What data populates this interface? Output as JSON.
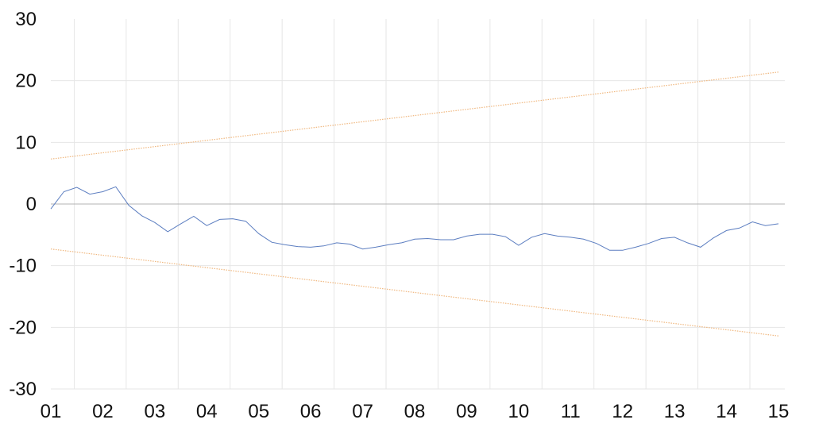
{
  "chart_data": {
    "type": "line",
    "title": "",
    "xlabel": "",
    "ylabel": "",
    "ylim": [
      -30,
      30
    ],
    "yticks": [
      30,
      20,
      10,
      0,
      -10,
      -20,
      -30
    ],
    "x_categories": [
      "01",
      "02",
      "03",
      "04",
      "05",
      "06",
      "07",
      "08",
      "09",
      "10",
      "11",
      "12",
      "13",
      "14",
      "15"
    ],
    "grid": {
      "horizontal": true,
      "vertical": true
    },
    "legend": "none",
    "series": [
      {
        "color": "#5b7dc0",
        "style": "solid",
        "x": [
          0.0,
          0.25,
          0.5,
          0.75,
          1.0,
          1.25,
          1.5,
          1.75,
          2.0,
          2.25,
          2.5,
          2.75,
          3.0,
          3.25,
          3.5,
          3.75,
          4.0,
          4.25,
          4.5,
          4.75,
          5.0,
          5.25,
          5.5,
          5.75,
          6.0,
          6.25,
          6.5,
          6.75,
          7.0,
          7.25,
          7.5,
          7.75,
          8.0,
          8.25,
          8.5,
          8.75,
          9.0,
          9.25,
          9.5,
          9.75,
          10.0,
          10.25,
          10.5,
          10.75,
          11.0,
          11.25,
          11.5,
          11.75,
          12.0,
          12.25,
          12.5,
          12.75,
          13.0,
          13.25,
          13.5,
          13.75,
          14.0
        ],
        "values": [
          -0.8,
          2.0,
          2.7,
          1.6,
          2.0,
          2.8,
          -0.2,
          -1.9,
          -3.0,
          -4.5,
          -3.2,
          -2.0,
          -3.5,
          -2.5,
          -2.4,
          -2.8,
          -4.8,
          -6.2,
          -6.6,
          -6.9,
          -7.0,
          -6.8,
          -6.3,
          -6.5,
          -7.3,
          -7.0,
          -6.6,
          -6.3,
          -5.7,
          -5.6,
          -5.8,
          -5.8,
          -5.2,
          -4.9,
          -4.9,
          -5.3,
          -6.7,
          -5.4,
          -4.8,
          -5.2,
          -5.4,
          -5.7,
          -6.4,
          -7.5,
          -7.5,
          -7.0,
          -6.4,
          -5.6,
          -5.4,
          -6.3,
          -7.0,
          -5.5,
          -4.3,
          -3.9,
          -2.9,
          -3.5,
          -3.2
        ]
      },
      {
        "color": "#f0b77e",
        "style": "dotted",
        "x": [
          0.0,
          14.0
        ],
        "values": [
          7.3,
          21.4
        ]
      },
      {
        "color": "#f0b77e",
        "style": "dotted",
        "x": [
          0.0,
          14.0
        ],
        "values": [
          -7.3,
          -21.4
        ]
      }
    ]
  }
}
